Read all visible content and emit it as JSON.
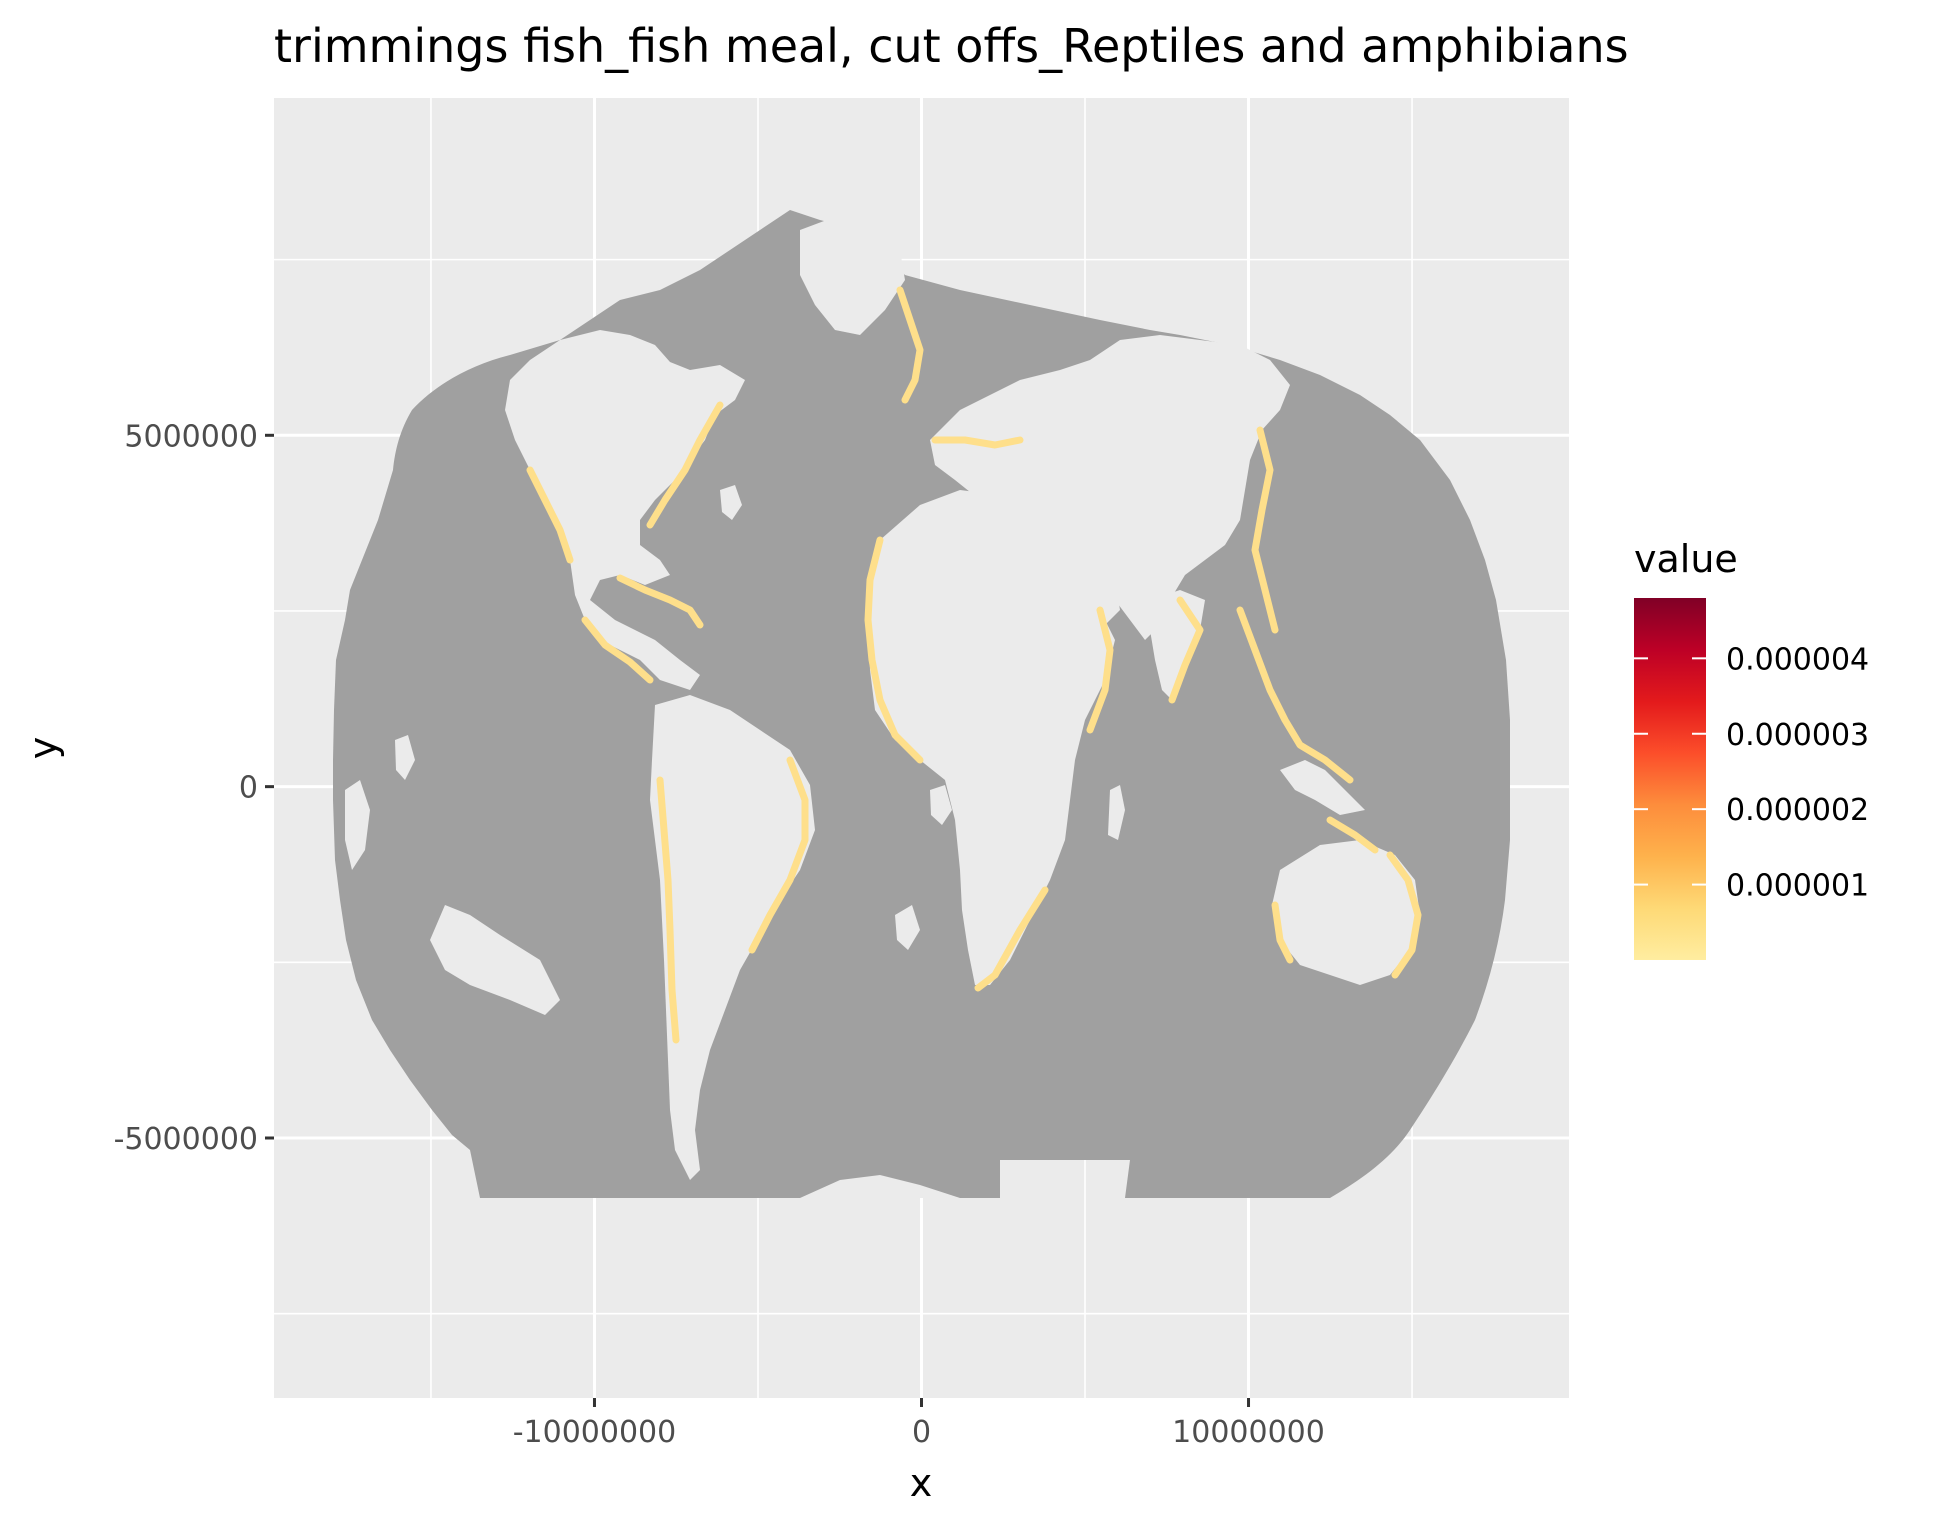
{
  "chart_data": {
    "type": "heatmap",
    "title": "trimmings fish_fish meal, cut offs_Reptiles and amphibians",
    "xlabel": "x",
    "ylabel": "y",
    "xlim": [
      -19800000,
      19800000
    ],
    "ylim": [
      -8700000,
      9800000
    ],
    "x_ticks": [
      {
        "value": -10000000,
        "label": "-10000000"
      },
      {
        "value": 0,
        "label": "0"
      },
      {
        "value": 10000000,
        "label": "10000000"
      }
    ],
    "x_minor": [
      -15000000,
      -5000000,
      5000000,
      15000000
    ],
    "y_ticks": [
      {
        "value": 5000000,
        "label": "5000000"
      },
      {
        "value": 0,
        "label": "0"
      },
      {
        "value": -5000000,
        "label": "-5000000"
      }
    ],
    "y_minor": [
      7500000,
      2500000,
      -2500000,
      -7500000
    ],
    "grid": true,
    "panel_background": "#ebebeb",
    "na_color": "#a0a0a0",
    "land_color": "#ebebeb",
    "highlight_color": "#fedf8b",
    "legend": {
      "title": "value",
      "position": "right",
      "colors": [
        "#ffeda0",
        "#fed976",
        "#feb24c",
        "#fd8d3c",
        "#fc4e2a",
        "#e31a1c",
        "#bd0026",
        "#800026"
      ],
      "range": [
        0,
        4.8e-06
      ],
      "breaks": [
        {
          "value": 1e-06,
          "label": "0.000001"
        },
        {
          "value": 2e-06,
          "label": "0.000002"
        },
        {
          "value": 3e-06,
          "label": "0.000003"
        },
        {
          "value": 4e-06,
          "label": "0.000004"
        }
      ]
    }
  }
}
